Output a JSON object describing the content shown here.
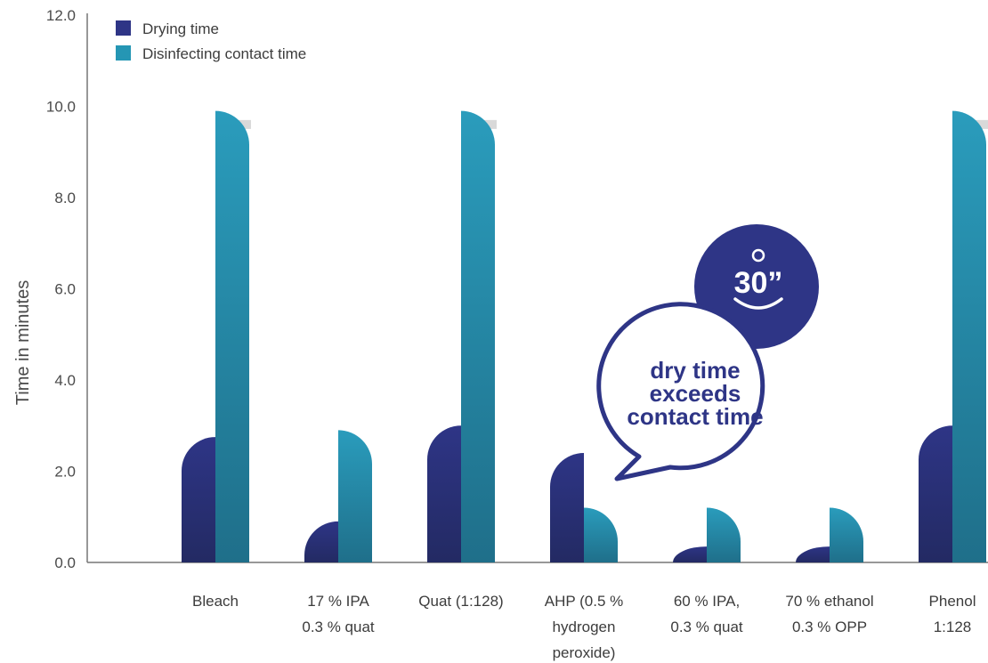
{
  "chart_data": {
    "type": "bar",
    "ylabel": "Time in minutes",
    "ylim": [
      0,
      12
    ],
    "yticks": [
      "0.0",
      "2.0",
      "4.0",
      "6.0",
      "8.0",
      "10.0",
      "12.0"
    ],
    "grid": false,
    "legend_position": "top-left",
    "categories": [
      [
        "Bleach"
      ],
      [
        "17 % IPA",
        "0.3 % quat"
      ],
      [
        "Quat (1:128)"
      ],
      [
        "AHP (0.5 %",
        "hydrogen",
        "peroxide)"
      ],
      [
        "60 % IPA,",
        "0.3 % quat"
      ],
      [
        "70 % ethanol",
        "0.3 % OPP"
      ],
      [
        "Phenol",
        "1:128"
      ]
    ],
    "series": [
      {
        "name": "Drying time",
        "values": [
          2.75,
          0.9,
          3.0,
          2.4,
          0.35,
          0.35,
          3.0
        ]
      },
      {
        "name": "Disinfecting contact time",
        "values": [
          9.9,
          2.9,
          9.9,
          1.2,
          1.2,
          1.2,
          9.9
        ]
      }
    ],
    "annotation": {
      "text": [
        "dry time",
        "exceeds",
        "contact time"
      ],
      "timer": "30”"
    }
  },
  "colors": {
    "drying": "#2e3586",
    "contact": "#2596b4",
    "text": "#4a4a4a",
    "callout_border": "#2e3586"
  }
}
